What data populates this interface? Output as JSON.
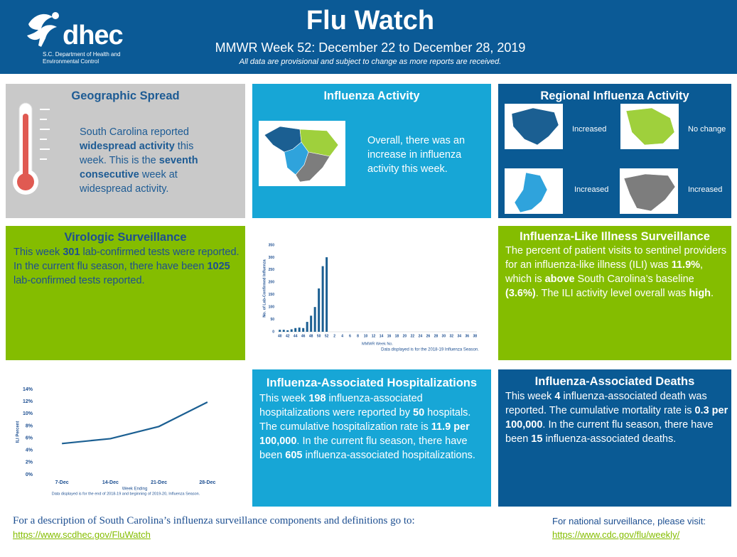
{
  "header": {
    "logo": "dhec",
    "logo_sub": "S.C. Department of Health and Environmental Control",
    "title": "Flu Watch",
    "subtitle": "MMWR Week 52: December 22 to December 28, 2019",
    "note": "All data are provisional and subject to change as more reports are received."
  },
  "geographic_spread": {
    "title": "Geographic Spread",
    "body": [
      {
        "text": "South Carolina reported "
      },
      {
        "text": "widespread activity",
        "bold": true
      },
      {
        "text": " this week. This is the "
      },
      {
        "text": "seventh consecutive",
        "bold": true
      },
      {
        "text": " week at widespread activity."
      }
    ]
  },
  "influenza_activity": {
    "title": "Influenza Activity",
    "text": "Overall, there was an increase in influenza activity this week."
  },
  "regional": {
    "title": "Regional Influenza Activity",
    "regions": [
      {
        "status": "Increased",
        "color": "#1b5f92"
      },
      {
        "status": "No change",
        "color": "#9fd03c"
      },
      {
        "status": "Increased",
        "color": "#2fa3dc"
      },
      {
        "status": "Increased",
        "color": "#7d7d7d"
      }
    ]
  },
  "virologic": {
    "title": "Virologic Surveillance",
    "body": [
      {
        "text": "This week "
      },
      {
        "text": "301",
        "bold": true
      },
      {
        "text": " lab-confirmed tests were reported.  In the current flu season, there have been "
      },
      {
        "text": "1025",
        "bold": true
      },
      {
        "text": " lab-confirmed tests reported."
      }
    ]
  },
  "ili": {
    "title": "Influenza-Like Illness Surveillance",
    "body": [
      {
        "text": "The percent of patient visits to sentinel providers for an influenza-like illness (ILI) was "
      },
      {
        "text": "11.9%",
        "bold": true
      },
      {
        "text": ", which is "
      },
      {
        "text": "above",
        "bold": true
      },
      {
        "text": " South Carolina’s baseline "
      },
      {
        "text": "(3.6%)",
        "bold": true
      },
      {
        "text": ". The ILI activity level overall was "
      },
      {
        "text": "high",
        "bold": true
      },
      {
        "text": "."
      }
    ]
  },
  "hospitalizations": {
    "title": "Influenza-Associated Hospitalizations",
    "body": [
      {
        "text": "This week "
      },
      {
        "text": "198",
        "bold": true
      },
      {
        "text": " influenza-associated hospitalizations were reported by "
      },
      {
        "text": "50",
        "bold": true
      },
      {
        "text": " hospitals. The cumulative hospitalization rate is "
      },
      {
        "text": "11.9 per 100,000",
        "bold": true
      },
      {
        "text": ". In the current flu season, there have been "
      },
      {
        "text": "605",
        "bold": true
      },
      {
        "text": " influenza-associated hospitalizations."
      }
    ]
  },
  "deaths": {
    "title": "Influenza-Associated Deaths",
    "body": [
      {
        "text": "This week "
      },
      {
        "text": "4",
        "bold": true
      },
      {
        "text": " influenza-associated death was reported. The cumulative mortality rate is "
      },
      {
        "text": "0.3 per 100,000",
        "bold": true
      },
      {
        "text": ". In the current flu season, there have been "
      },
      {
        "text": "15",
        "bold": true
      },
      {
        "text": " influenza-associated deaths."
      }
    ]
  },
  "footer": {
    "left_text": "For a description of South Carolina’s influenza surveillance components and definitions go to:",
    "left_link": "https://www.scdhec.gov/FluWatch",
    "right_text": "For national surveillance, please visit:",
    "right_link": "https://www.cdc.gov/flu/weekly/"
  },
  "chart_data": [
    {
      "type": "bar",
      "y_title": "No. of Lab-Confirmed Influenza",
      "x_title": "MMWR Week No.",
      "note": "Data displayed is for the 2018-19 Influenza Season.",
      "categories": [
        "40",
        null,
        "42",
        null,
        "44",
        null,
        "46",
        null,
        "48",
        null,
        "50",
        null,
        "52",
        null,
        "2",
        null,
        "4",
        null,
        "6",
        null,
        "8",
        null,
        "10",
        null,
        "12",
        null,
        "14",
        null,
        "16",
        null,
        "18",
        null,
        "20",
        null,
        "22",
        null,
        "24",
        null,
        "26",
        null,
        "28",
        null,
        "30",
        null,
        "32",
        null,
        "34",
        null,
        "36",
        null,
        "38"
      ],
      "values": [
        8,
        8,
        6,
        10,
        15,
        17,
        15,
        40,
        65,
        100,
        175,
        265,
        301,
        null,
        null,
        null,
        null,
        null,
        null,
        null,
        null,
        null,
        null,
        null,
        null,
        null,
        null,
        null,
        null,
        null,
        null,
        null,
        null,
        null,
        null,
        null,
        null,
        null,
        null,
        null,
        null,
        null,
        null,
        null,
        null,
        null,
        null,
        null,
        null,
        null,
        null
      ],
      "color": "#1b5f92",
      "ylim": [
        0,
        350
      ],
      "yticks": [
        0,
        50,
        100,
        150,
        200,
        250,
        300,
        350
      ]
    },
    {
      "type": "line",
      "y_title": "ILI Percent",
      "x_title": "Week Ending",
      "note": "Data displayed is for the end of 2018-19 and beginning of 2019-20, Influenza Season.",
      "categories": [
        "7-Dec",
        "14-Dec",
        "21-Dec",
        "28-Dec"
      ],
      "values": [
        5.1,
        5.9,
        7.9,
        11.9
      ],
      "color": "#1b5f92",
      "ylim": [
        0,
        14
      ],
      "yticks": [
        {
          "value": 0,
          "label": "0%"
        },
        {
          "value": 2,
          "label": "2%"
        },
        {
          "value": 4,
          "label": "4%"
        },
        {
          "value": 6,
          "label": "6%"
        },
        {
          "value": 8,
          "label": "8%"
        },
        {
          "value": 10,
          "label": "10%"
        },
        {
          "value": 12,
          "label": "12%"
        },
        {
          "value": 14,
          "label": "14%"
        }
      ]
    }
  ]
}
